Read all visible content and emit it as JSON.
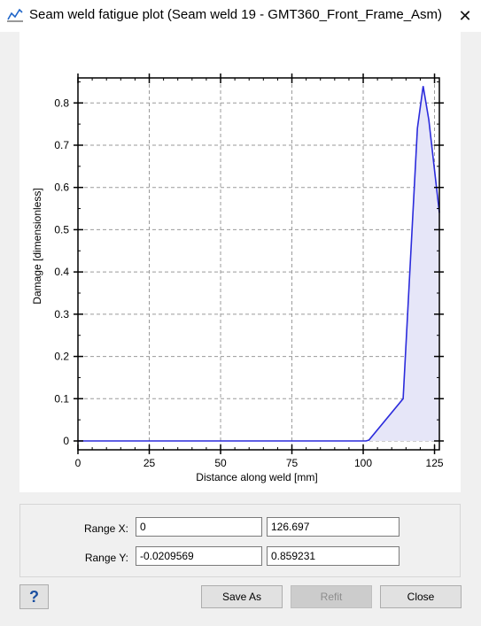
{
  "window": {
    "title": "Seam weld fatigue plot (Seam weld 19 - GMT360_Front_Frame_Asm)",
    "title_icon": "line-chart-icon",
    "close_glyph": "✕"
  },
  "chart_data": {
    "type": "area",
    "xlabel": "Distance along weld [mm]",
    "ylabel": "Damage [dimensionless]",
    "xlim": [
      0,
      126.697
    ],
    "ylim": [
      -0.0209569,
      0.859231
    ],
    "xticks": [
      0,
      25,
      50,
      75,
      100,
      125
    ],
    "yticks": [
      0,
      0.1,
      0.2,
      0.3,
      0.4,
      0.5,
      0.6,
      0.7,
      0.8
    ],
    "ytick_labels": [
      "0",
      "0.1",
      "0.2",
      "0.3",
      "0.4",
      "0.5",
      "0.6",
      "0.7",
      "0.8"
    ],
    "grid": true,
    "series": [
      {
        "x": [
          0,
          101,
          102,
          114,
          119,
          121,
          123,
          126.697
        ],
        "y": [
          0,
          0,
          0.002,
          0.1,
          0.74,
          0.84,
          0.76,
          0.54
        ]
      }
    ],
    "colors": {
      "line": "#2b2bdc",
      "fill": "#e6e6f8",
      "grid": "#9a9a9a"
    }
  },
  "range": {
    "x_label": "Range X:",
    "y_label": "Range Y:",
    "x_min": "0",
    "x_max": "126.697",
    "y_min": "-0.0209569",
    "y_max": "0.859231"
  },
  "buttons": {
    "help": "?",
    "save_as": "Save As",
    "refit": "Refit",
    "close": "Close"
  }
}
